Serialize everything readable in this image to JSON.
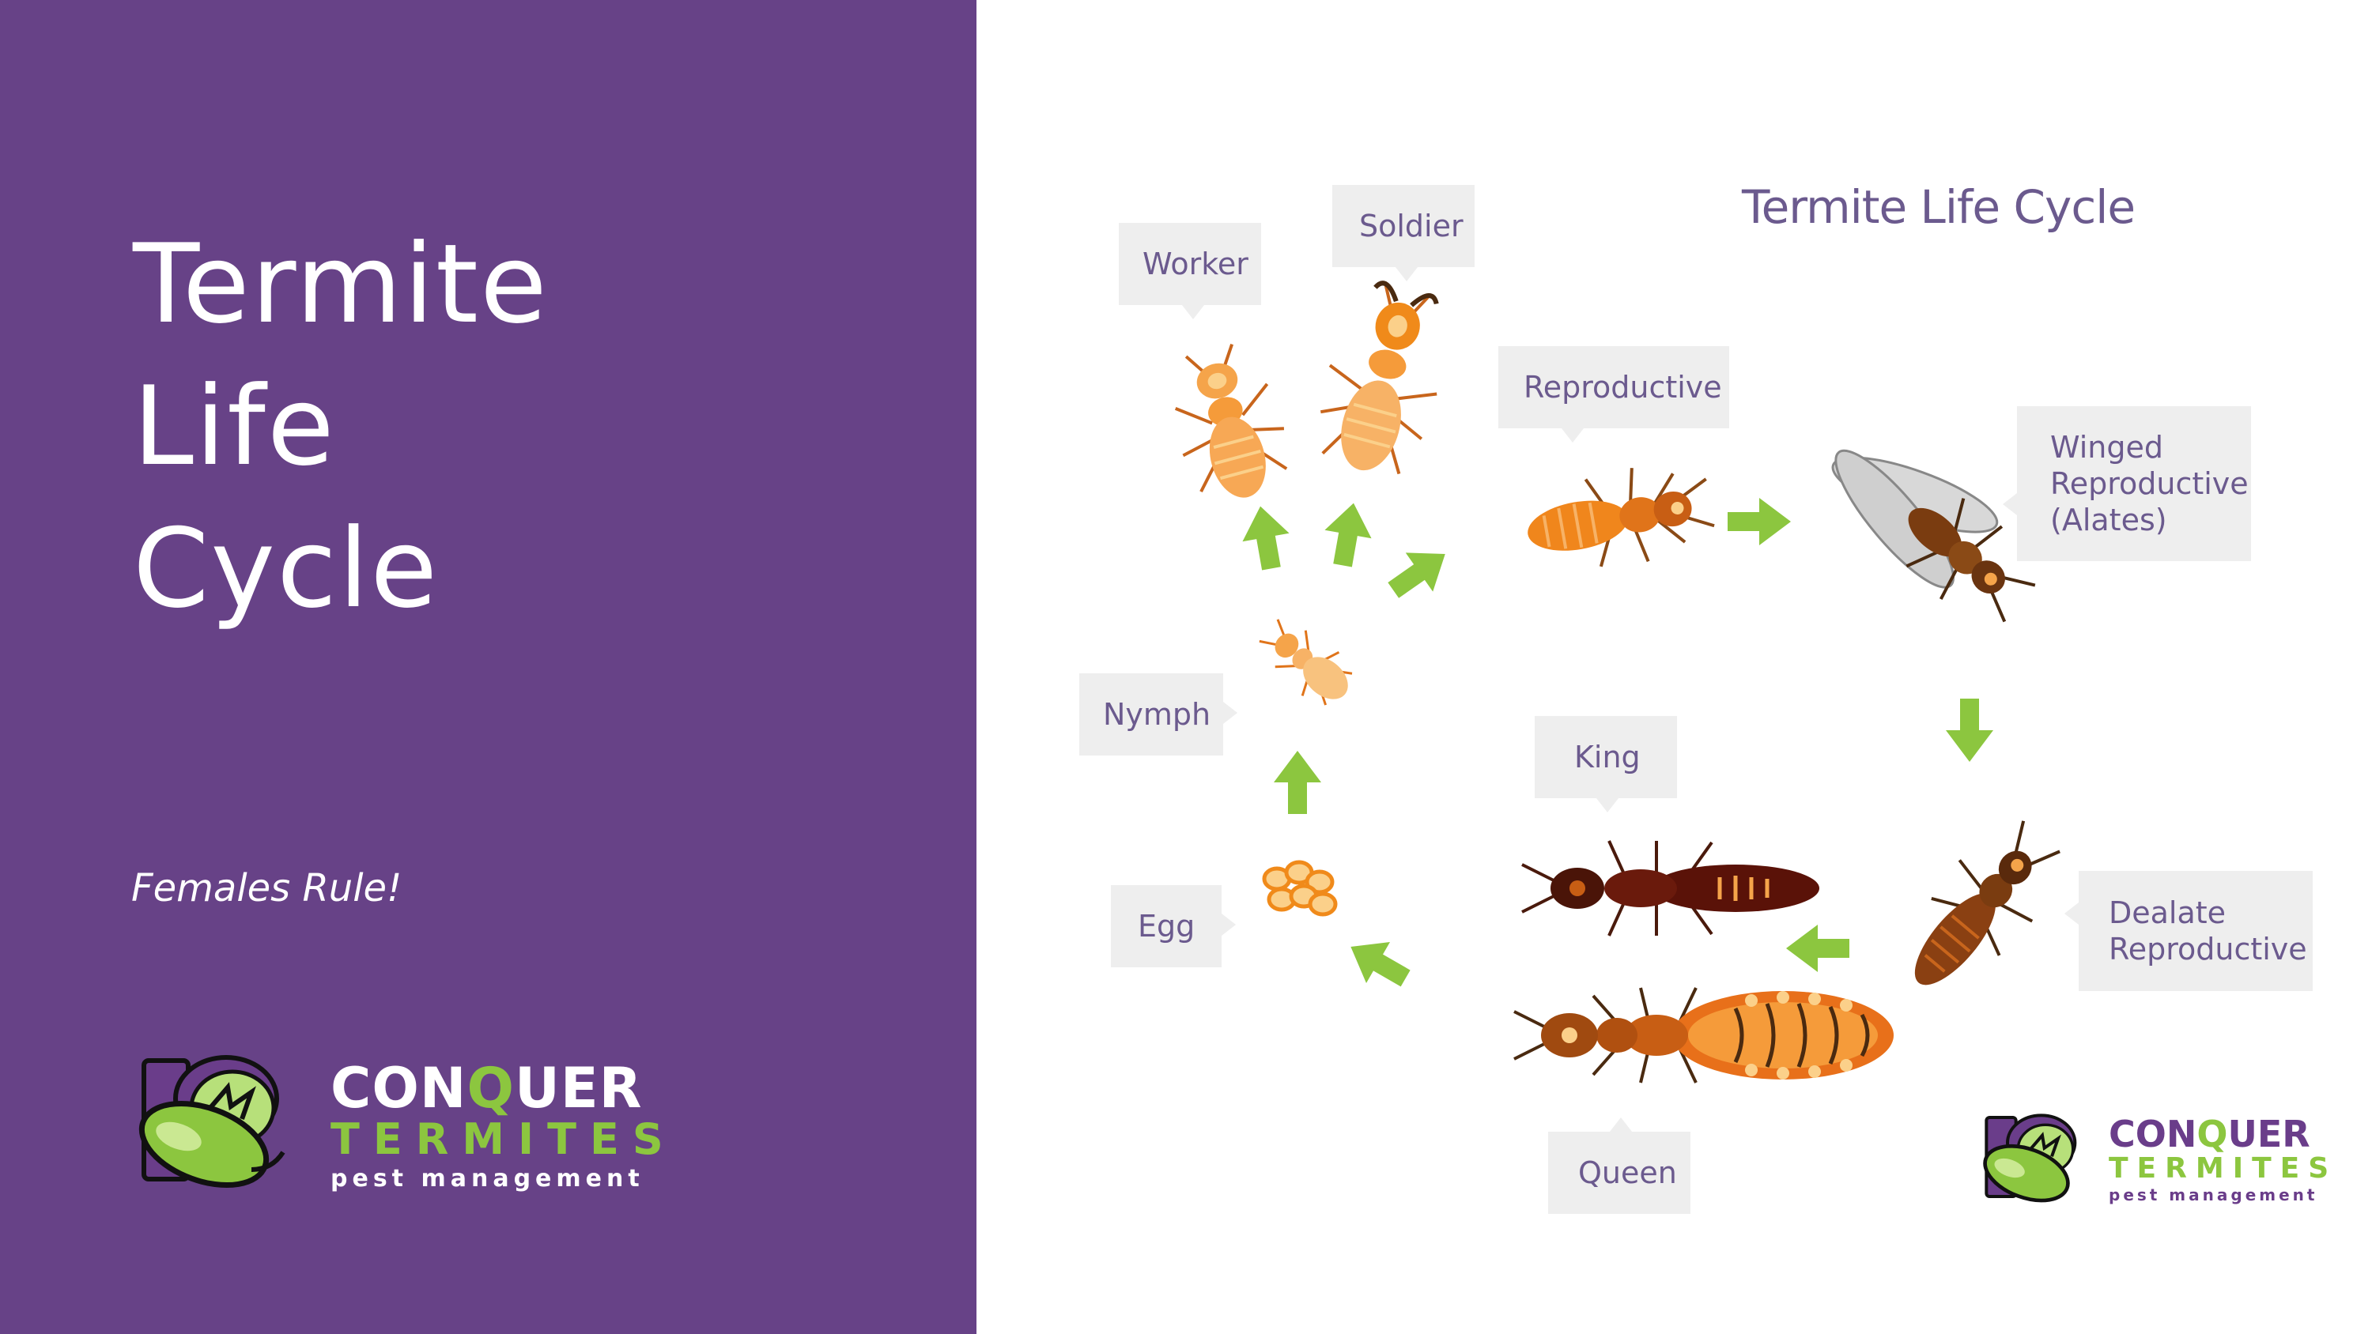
{
  "slide": {
    "title_lines": [
      "Termite",
      "Life",
      "Cycle"
    ],
    "subtitle": "Females Rule!"
  },
  "diagram": {
    "title": "Termite Life Cycle",
    "labels": {
      "worker": "Worker",
      "soldier": "Soldier",
      "reproductive": "Reproductive",
      "winged_lines": [
        "Winged",
        "Reproductive",
        "(Alates)"
      ],
      "nymph": "Nymph",
      "king": "King",
      "dealate_lines": [
        "Dealate",
        "Reproductive"
      ],
      "egg": "Egg",
      "queen": "Queen"
    }
  },
  "logo": {
    "word1_a": "CON",
    "word1_q": "Q",
    "word1_b": "UER",
    "word2": "TERMITES",
    "word3": "pest management"
  },
  "colors": {
    "panel_purple": "#674287",
    "label_text": "#6b5a8e",
    "arrow_green": "#8cc63f",
    "logo_green": "#8cc63f",
    "logo_purple": "#6a3d8a"
  }
}
